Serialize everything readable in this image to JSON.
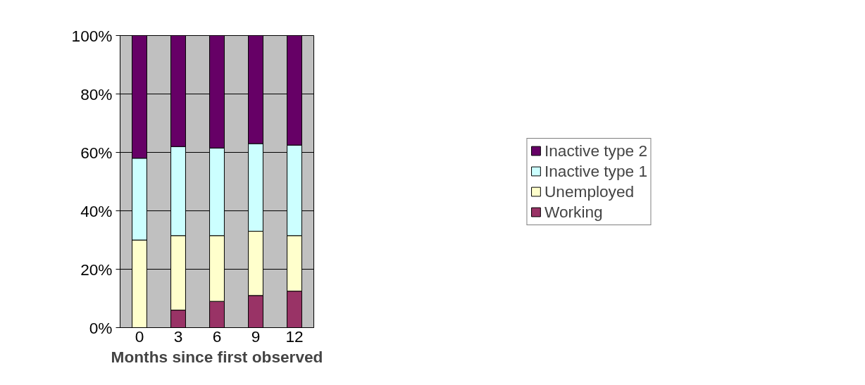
{
  "chart_data": {
    "type": "bar",
    "stacked": true,
    "xlabel": "Months since first observed",
    "categories": [
      "0",
      "3",
      "6",
      "9",
      "12"
    ],
    "series": [
      {
        "name": "Working",
        "color": "#993366",
        "values": [
          0,
          6,
          9,
          11,
          12.5
        ]
      },
      {
        "name": "Unemployed",
        "color": "#ffffcc",
        "values": [
          30,
          25.5,
          22.5,
          22,
          19
        ]
      },
      {
        "name": "Inactive type 1",
        "color": "#ccffff",
        "values": [
          28,
          30.5,
          30,
          30,
          31
        ]
      },
      {
        "name": "Inactive type 2",
        "color": "#660066",
        "values": [
          42,
          38,
          38.5,
          37,
          37.5
        ]
      }
    ],
    "ylim": [
      0,
      100
    ],
    "yticks": [
      {
        "value": 0,
        "label": "0%"
      },
      {
        "value": 20,
        "label": "20%"
      },
      {
        "value": 40,
        "label": "40%"
      },
      {
        "value": 60,
        "label": "60%"
      },
      {
        "value": 80,
        "label": "80%"
      },
      {
        "value": 100,
        "label": "100%"
      }
    ],
    "grid": "y",
    "legend": "right"
  }
}
